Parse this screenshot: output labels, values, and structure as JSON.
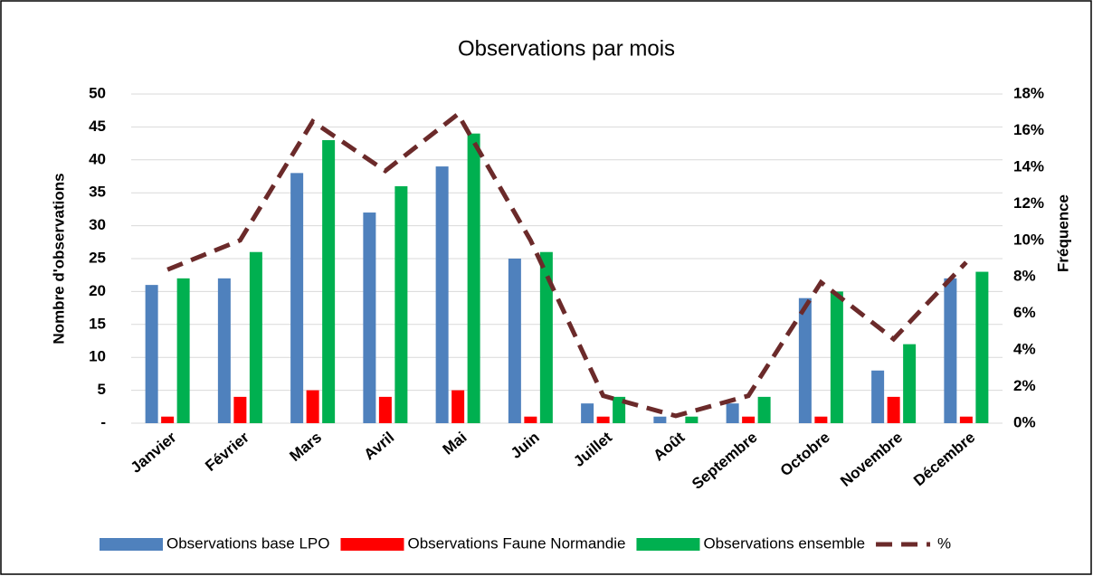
{
  "chart_data": {
    "type": "bar",
    "title": "Observations par mois",
    "ylabel": "Nombre d'observations",
    "y2label": "Fréquence",
    "categories": [
      "Janvier",
      "Février",
      "Mars",
      "Avril",
      "Mai",
      "Juin",
      "Juillet",
      "Août",
      "Septembre",
      "Octobre",
      "Novembre",
      "Décembre"
    ],
    "series": [
      {
        "name": "Observations base LPO",
        "color": "#4f81bd",
        "values": [
          21,
          22,
          38,
          32,
          39,
          25,
          3,
          1,
          3,
          19,
          8,
          22
        ]
      },
      {
        "name": "Observations Faune Normandie",
        "color": "#ff0000",
        "values": [
          1,
          4,
          5,
          4,
          5,
          1,
          1,
          0,
          1,
          1,
          4,
          1
        ]
      },
      {
        "name": "Observations ensemble",
        "color": "#00b050",
        "values": [
          22,
          26,
          43,
          36,
          44,
          26,
          4,
          1,
          4,
          20,
          12,
          23
        ]
      },
      {
        "name": "%",
        "color": "#6b2a2a",
        "type": "line",
        "axis": "y2",
        "values": [
          8.4,
          10.0,
          16.5,
          13.8,
          16.9,
          10.0,
          1.5,
          0.4,
          1.5,
          7.7,
          4.6,
          8.8
        ]
      }
    ],
    "ylim": [
      0,
      50
    ],
    "yticks": [
      {
        "value": 0,
        "label": "-"
      },
      5,
      10,
      15,
      20,
      25,
      30,
      35,
      40,
      45,
      50
    ],
    "y2lim": [
      0,
      18
    ],
    "y2ticks": [
      {
        "value": 0,
        "label": "0%"
      },
      {
        "value": 2,
        "label": "2%"
      },
      {
        "value": 4,
        "label": "4%"
      },
      {
        "value": 6,
        "label": "6%"
      },
      {
        "value": 8,
        "label": "8%"
      },
      {
        "value": 10,
        "label": "10%"
      },
      {
        "value": 12,
        "label": "12%"
      },
      {
        "value": 14,
        "label": "14%"
      },
      {
        "value": 16,
        "label": "16%"
      },
      {
        "value": 18,
        "label": "18%"
      }
    ],
    "grid": true,
    "legend": "bottom"
  }
}
